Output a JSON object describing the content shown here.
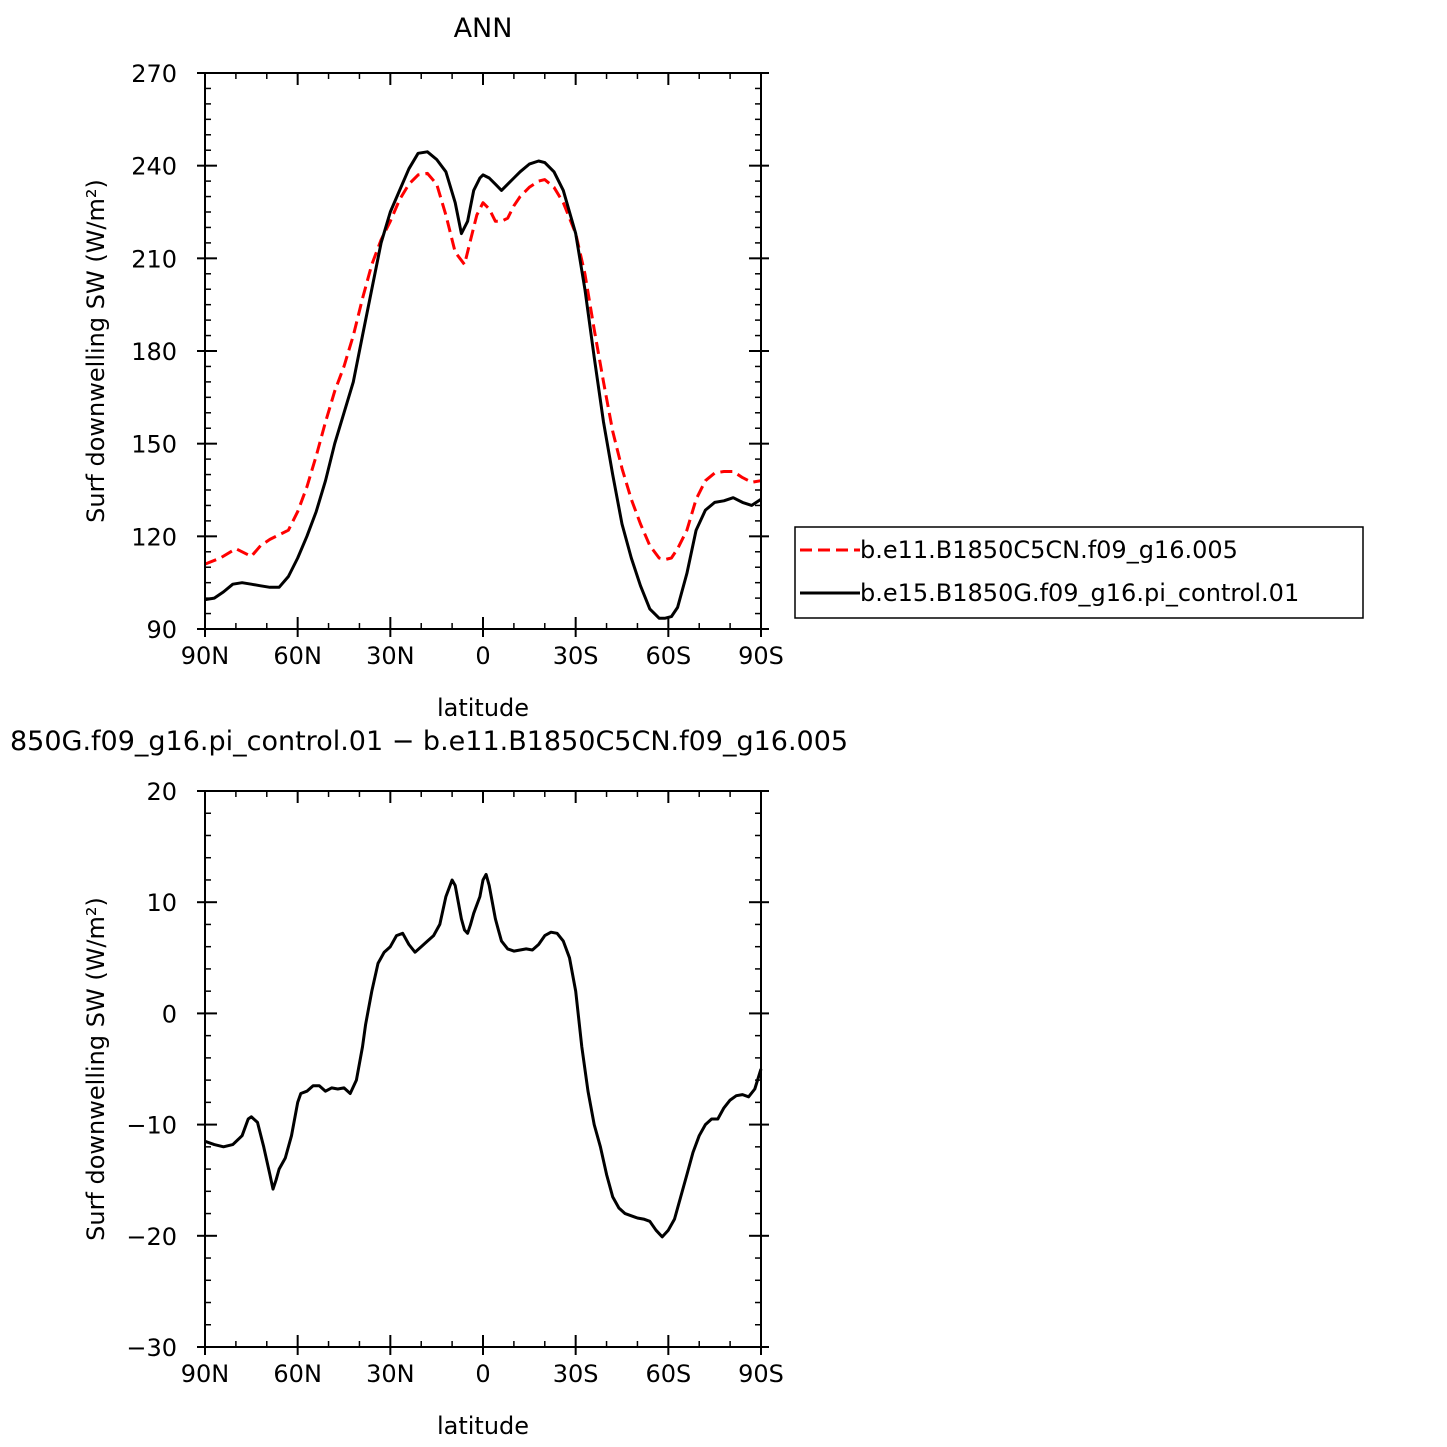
{
  "chart_data": [
    {
      "type": "line",
      "title": "ANN",
      "xlabel": "latitude",
      "ylabel": "Surf downwelling SW (W/m²)",
      "x_ticks": [
        "90N",
        "60N",
        "30N",
        "0",
        "30S",
        "60S",
        "90S"
      ],
      "y_ticks": [
        "90",
        "120",
        "150",
        "180",
        "210",
        "240",
        "270"
      ],
      "xlim": [
        90,
        -90
      ],
      "ylim": [
        90,
        270
      ],
      "legend_position": "right",
      "series": [
        {
          "name": "b.e11.B1850C5CN.f09_g16.005",
          "color": "#ff0000",
          "dash": "dashed",
          "x": [
            90,
            85,
            80,
            75,
            72,
            69,
            66,
            63,
            60,
            57,
            54,
            51,
            48,
            45,
            42,
            39,
            36,
            33,
            30,
            27,
            24,
            21,
            18,
            15,
            12,
            9,
            6,
            4,
            2,
            0,
            -2,
            -4,
            -6,
            -8,
            -10,
            -12,
            -15,
            -18,
            -20,
            -23,
            -26,
            -30,
            -33,
            -36,
            -39,
            -42,
            -45,
            -48,
            -51,
            -54,
            -57,
            -59,
            -61,
            -63,
            -66,
            -69,
            -72,
            -75,
            -78,
            -81,
            -84,
            -87,
            -90
          ],
          "y": [
            111,
            113,
            116,
            113.5,
            117,
            119,
            120.5,
            122,
            128,
            136,
            146,
            157,
            167,
            175,
            185,
            197,
            208,
            216,
            222,
            229,
            234,
            237,
            237.5,
            234,
            224,
            212,
            208,
            216,
            224,
            228,
            226,
            222,
            222,
            223,
            227,
            230,
            233,
            235,
            235.5,
            233,
            228,
            218,
            205,
            187,
            170,
            154,
            142,
            132,
            124,
            117,
            113,
            112.5,
            113,
            116,
            122,
            132,
            138,
            140.5,
            141,
            141,
            139,
            137.5,
            138
          ]
        },
        {
          "name": "b.e15.B1850G.f09_g16.pi_control.01",
          "color": "#000000",
          "dash": "solid",
          "x": [
            90,
            87,
            84,
            81,
            78,
            75,
            72,
            69,
            66,
            63,
            60,
            57,
            54,
            51,
            48,
            45,
            42,
            39,
            36,
            33,
            30,
            27,
            24,
            21,
            18,
            15,
            12,
            9,
            7,
            5,
            3,
            1,
            0,
            -2,
            -4,
            -6,
            -8,
            -10,
            -12,
            -15,
            -18,
            -20,
            -23,
            -26,
            -30,
            -33,
            -36,
            -39,
            -42,
            -45,
            -48,
            -51,
            -54,
            -57,
            -59,
            -61,
            -63,
            -66,
            -69,
            -72,
            -75,
            -78,
            -81,
            -84,
            -87,
            -90
          ],
          "y": [
            99.5,
            100,
            102,
            104.5,
            105,
            104.5,
            104,
            103.5,
            103.5,
            107,
            113,
            120,
            128,
            138,
            150,
            160,
            170,
            185,
            200,
            215,
            225,
            232,
            239,
            244,
            244.5,
            242,
            238,
            228,
            218,
            222,
            232,
            236,
            237,
            236,
            234,
            232,
            234,
            236,
            238,
            240.5,
            241.5,
            241,
            238,
            232,
            218,
            200,
            178,
            157,
            140,
            124,
            113,
            104,
            96.5,
            93.5,
            93.5,
            94,
            97,
            108,
            122,
            128.5,
            131,
            131.5,
            132.5,
            131,
            130,
            132
          ]
        }
      ]
    },
    {
      "type": "line",
      "title": "850G.f09_g16.pi_control.01 − b.e11.B1850C5CN.f09_g16.005",
      "xlabel": "latitude",
      "ylabel": "Surf downwelling SW (W/m²)",
      "x_ticks": [
        "90N",
        "60N",
        "30N",
        "0",
        "30S",
        "60S",
        "90S"
      ],
      "y_ticks": [
        "−30",
        "−20",
        "−10",
        "0",
        "10",
        "20"
      ],
      "xlim": [
        90,
        -90
      ],
      "ylim": [
        -30,
        20
      ],
      "series": [
        {
          "color": "#000000",
          "dash": "solid",
          "x": [
            90,
            87,
            84,
            81,
            78,
            76,
            75,
            73,
            71,
            69,
            68,
            67,
            66,
            64,
            62,
            60,
            59,
            57,
            55,
            53,
            51,
            49,
            47,
            45,
            43,
            41,
            39,
            38,
            36,
            34,
            32,
            30,
            28,
            26,
            24,
            22,
            20,
            18,
            16,
            14,
            12,
            10,
            9,
            8,
            7,
            6,
            5,
            4,
            3,
            1,
            0,
            -1,
            -2,
            -3,
            -4,
            -5,
            -6,
            -8,
            -10,
            -12,
            -14,
            -16,
            -18,
            -20,
            -22,
            -24,
            -26,
            -28,
            -30,
            -32,
            -34,
            -36,
            -38,
            -40,
            -42,
            -44,
            -46,
            -48,
            -50,
            -52,
            -54,
            -56,
            -58,
            -60,
            -62,
            -64,
            -66,
            -68,
            -70,
            -72,
            -74,
            -76,
            -78,
            -80,
            -82,
            -84,
            -86,
            -88,
            -90
          ],
          "y": [
            -11.5,
            -11.8,
            -12,
            -11.8,
            -11,
            -9.5,
            -9.3,
            -9.8,
            -12,
            -14.5,
            -15.8,
            -15,
            -14,
            -13,
            -11,
            -8,
            -7.2,
            -7,
            -6.5,
            -6.5,
            -7,
            -6.7,
            -6.8,
            -6.7,
            -7.2,
            -6,
            -3,
            -1,
            2,
            4.5,
            5.5,
            6,
            7,
            7.2,
            6.2,
            5.5,
            6,
            6.5,
            7,
            8,
            10.5,
            12,
            11.5,
            10,
            8.5,
            7.5,
            7.2,
            8,
            9,
            10.5,
            12,
            12.5,
            11.5,
            10,
            8.5,
            7.5,
            6.5,
            5.8,
            5.6,
            5.7,
            5.8,
            5.7,
            6.2,
            7,
            7.3,
            7.2,
            6.5,
            5,
            2,
            -3,
            -7,
            -10,
            -12,
            -14.5,
            -16.5,
            -17.5,
            -18,
            -18.2,
            -18.4,
            -18.5,
            -18.7,
            -19.5,
            -20.1,
            -19.5,
            -18.5,
            -16.5,
            -14.5,
            -12.5,
            -11,
            -10,
            -9.5,
            -9.5,
            -8.5,
            -7.8,
            -7.4,
            -7.3,
            -7.5,
            -6.8,
            -5
          ]
        }
      ]
    }
  ]
}
